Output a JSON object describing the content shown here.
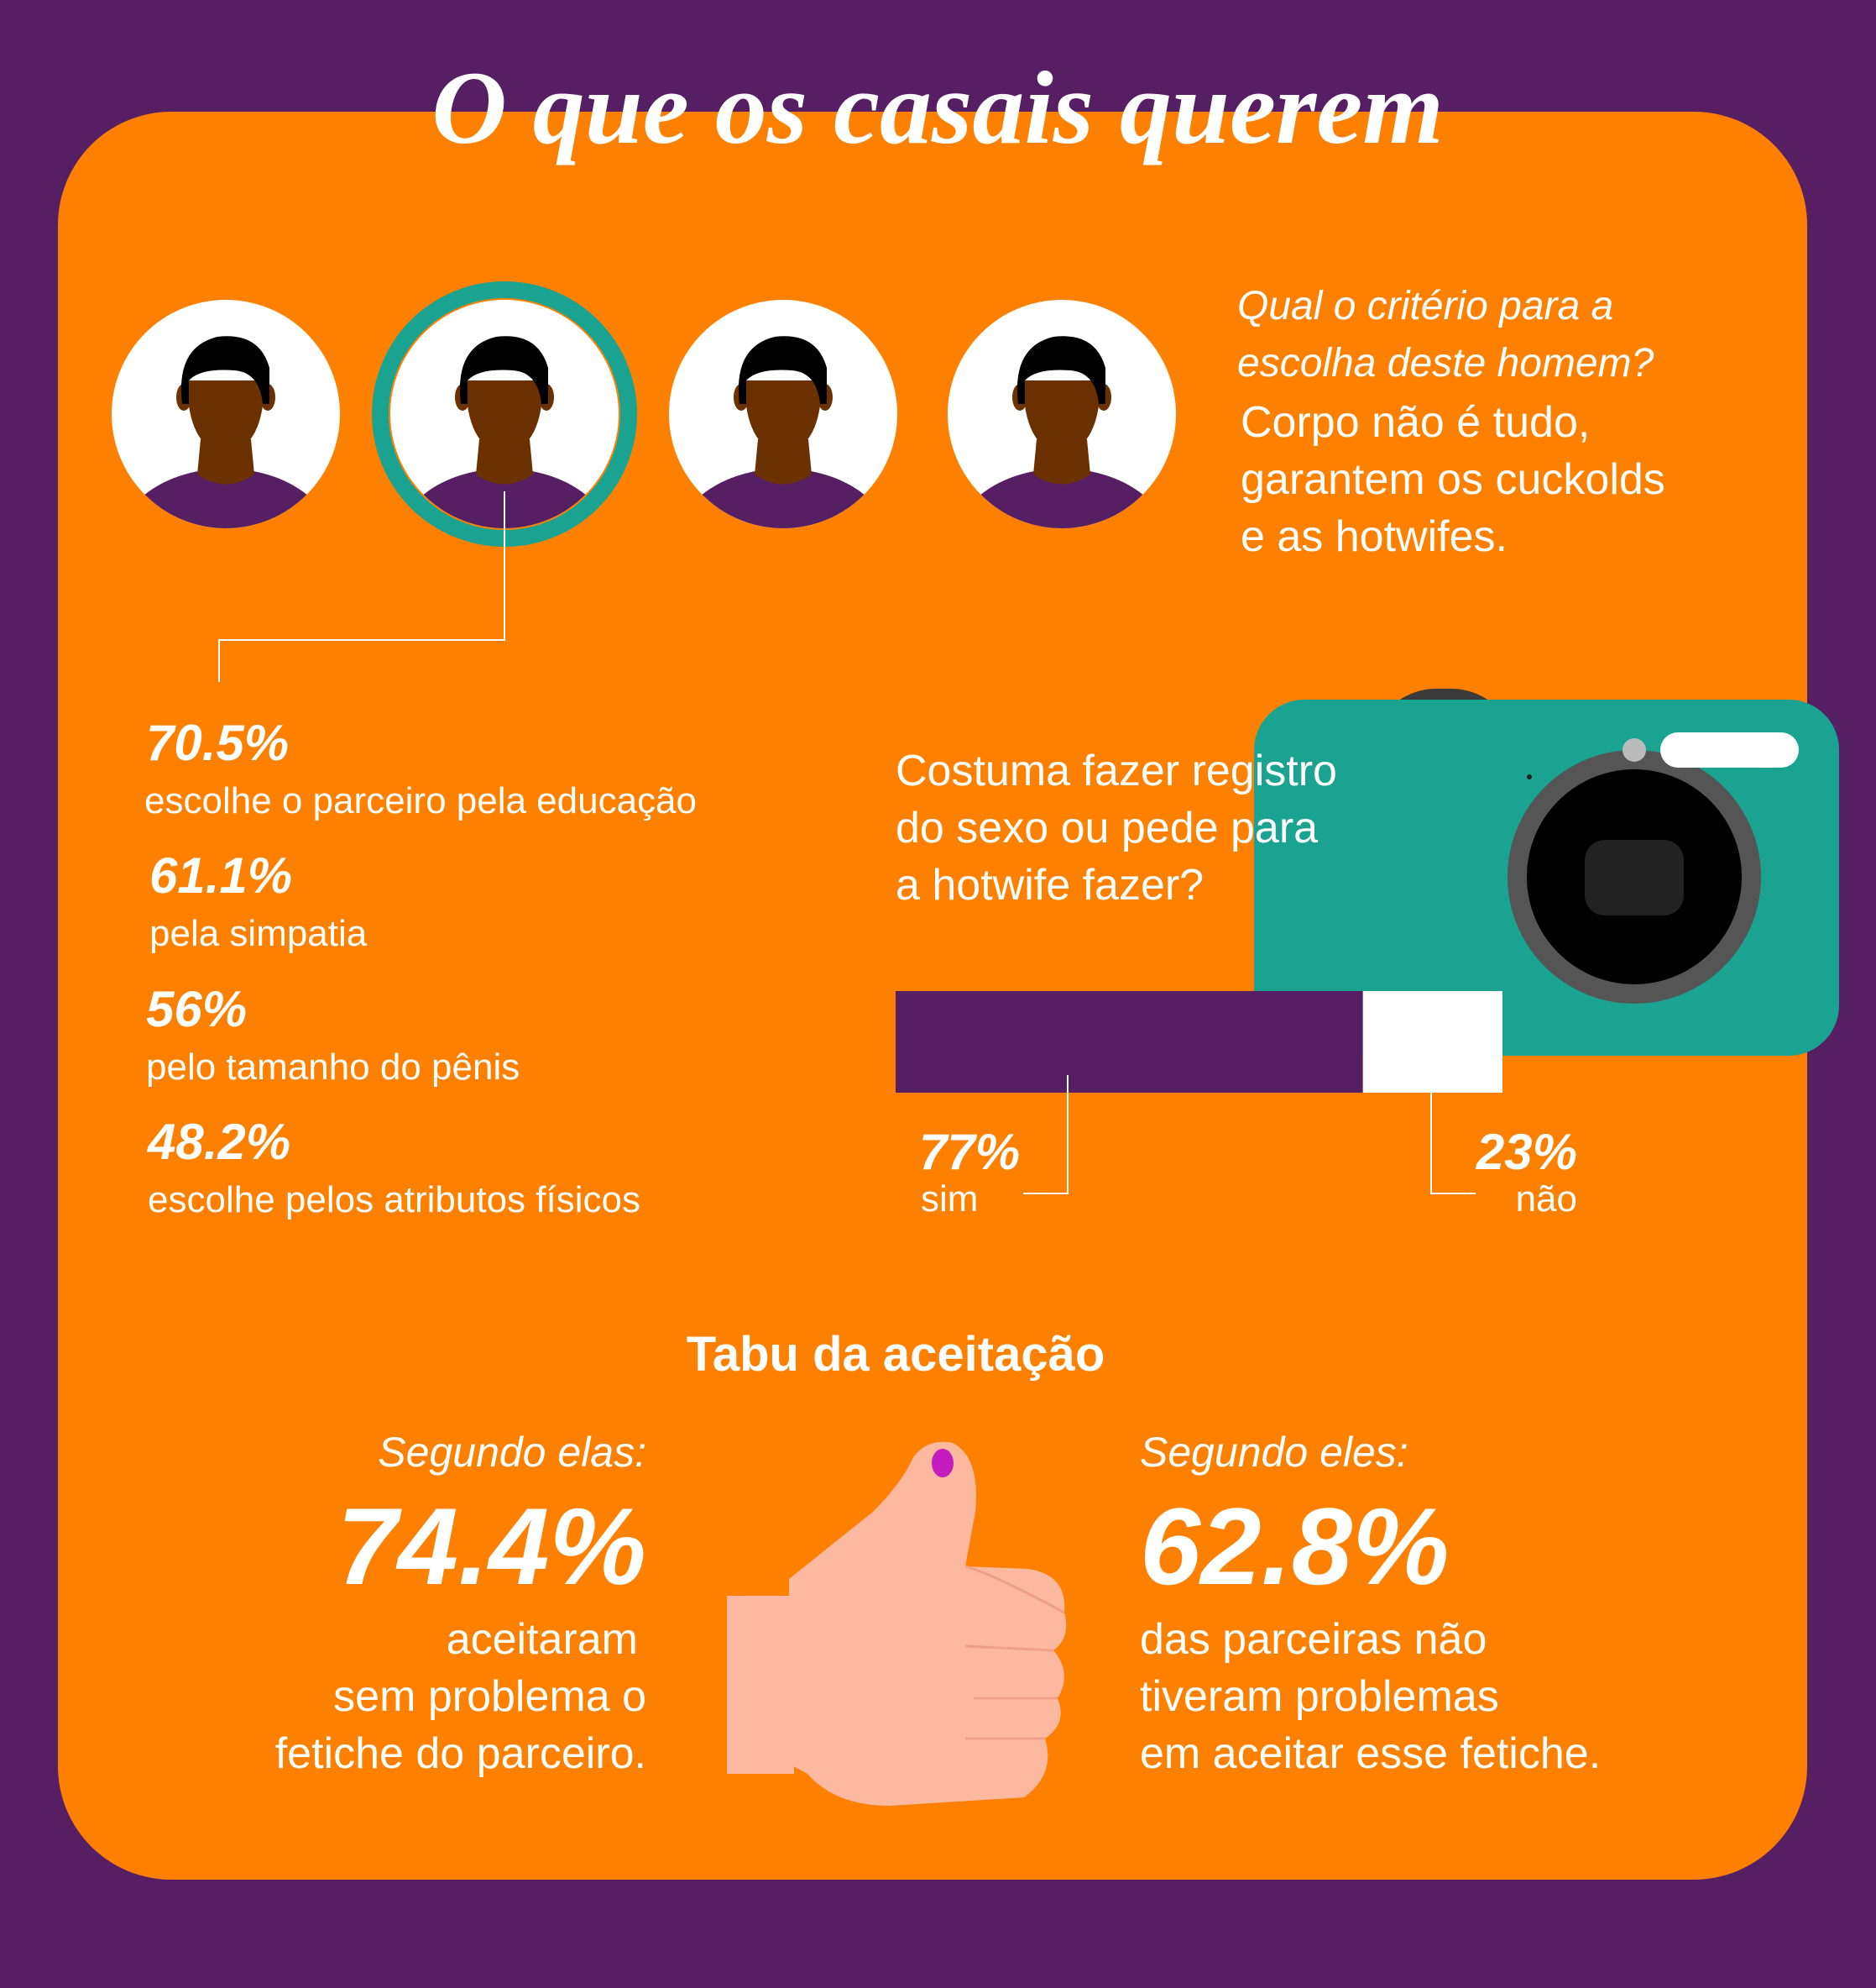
{
  "title": "O que os casais querem",
  "criteria": {
    "question": [
      "Qual o critério para a",
      "escolha deste homem?"
    ],
    "answer": [
      "Corpo não é tudo,",
      "garantem os cuckolds",
      "e as hotwifes."
    ],
    "stats": [
      {
        "value": "70.5%",
        "label": "escolhe o parceiro pela educação"
      },
      {
        "value": "61.1%",
        "label": "pela simpatia"
      },
      {
        "value": "56%",
        "label": "pelo tamanho do pênis"
      },
      {
        "value": "48.2%",
        "label": "escolhe pelos atributos físicos"
      }
    ]
  },
  "poll": {
    "question": [
      "Costuma fazer registro",
      "do sexo ou pede para",
      "a hotwife fazer?"
    ],
    "categories": [
      "sim",
      "não"
    ],
    "values": [
      77,
      23
    ],
    "value_labels": [
      "77%",
      "23%"
    ],
    "colors": [
      "#561f63",
      "#ffffff"
    ]
  },
  "acceptance": {
    "title": "Tabu da aceitação",
    "women": {
      "intro": "Segundo elas:",
      "value": "74.4%",
      "text": [
        "aceitaram",
        "sem problema o",
        "fetiche do parceiro."
      ]
    },
    "men": {
      "intro": "Segundo eles:",
      "value": "62.8%",
      "text": [
        "das parceiras não",
        "tiveram problemas",
        "em aceitar esse fetiche."
      ]
    }
  }
}
